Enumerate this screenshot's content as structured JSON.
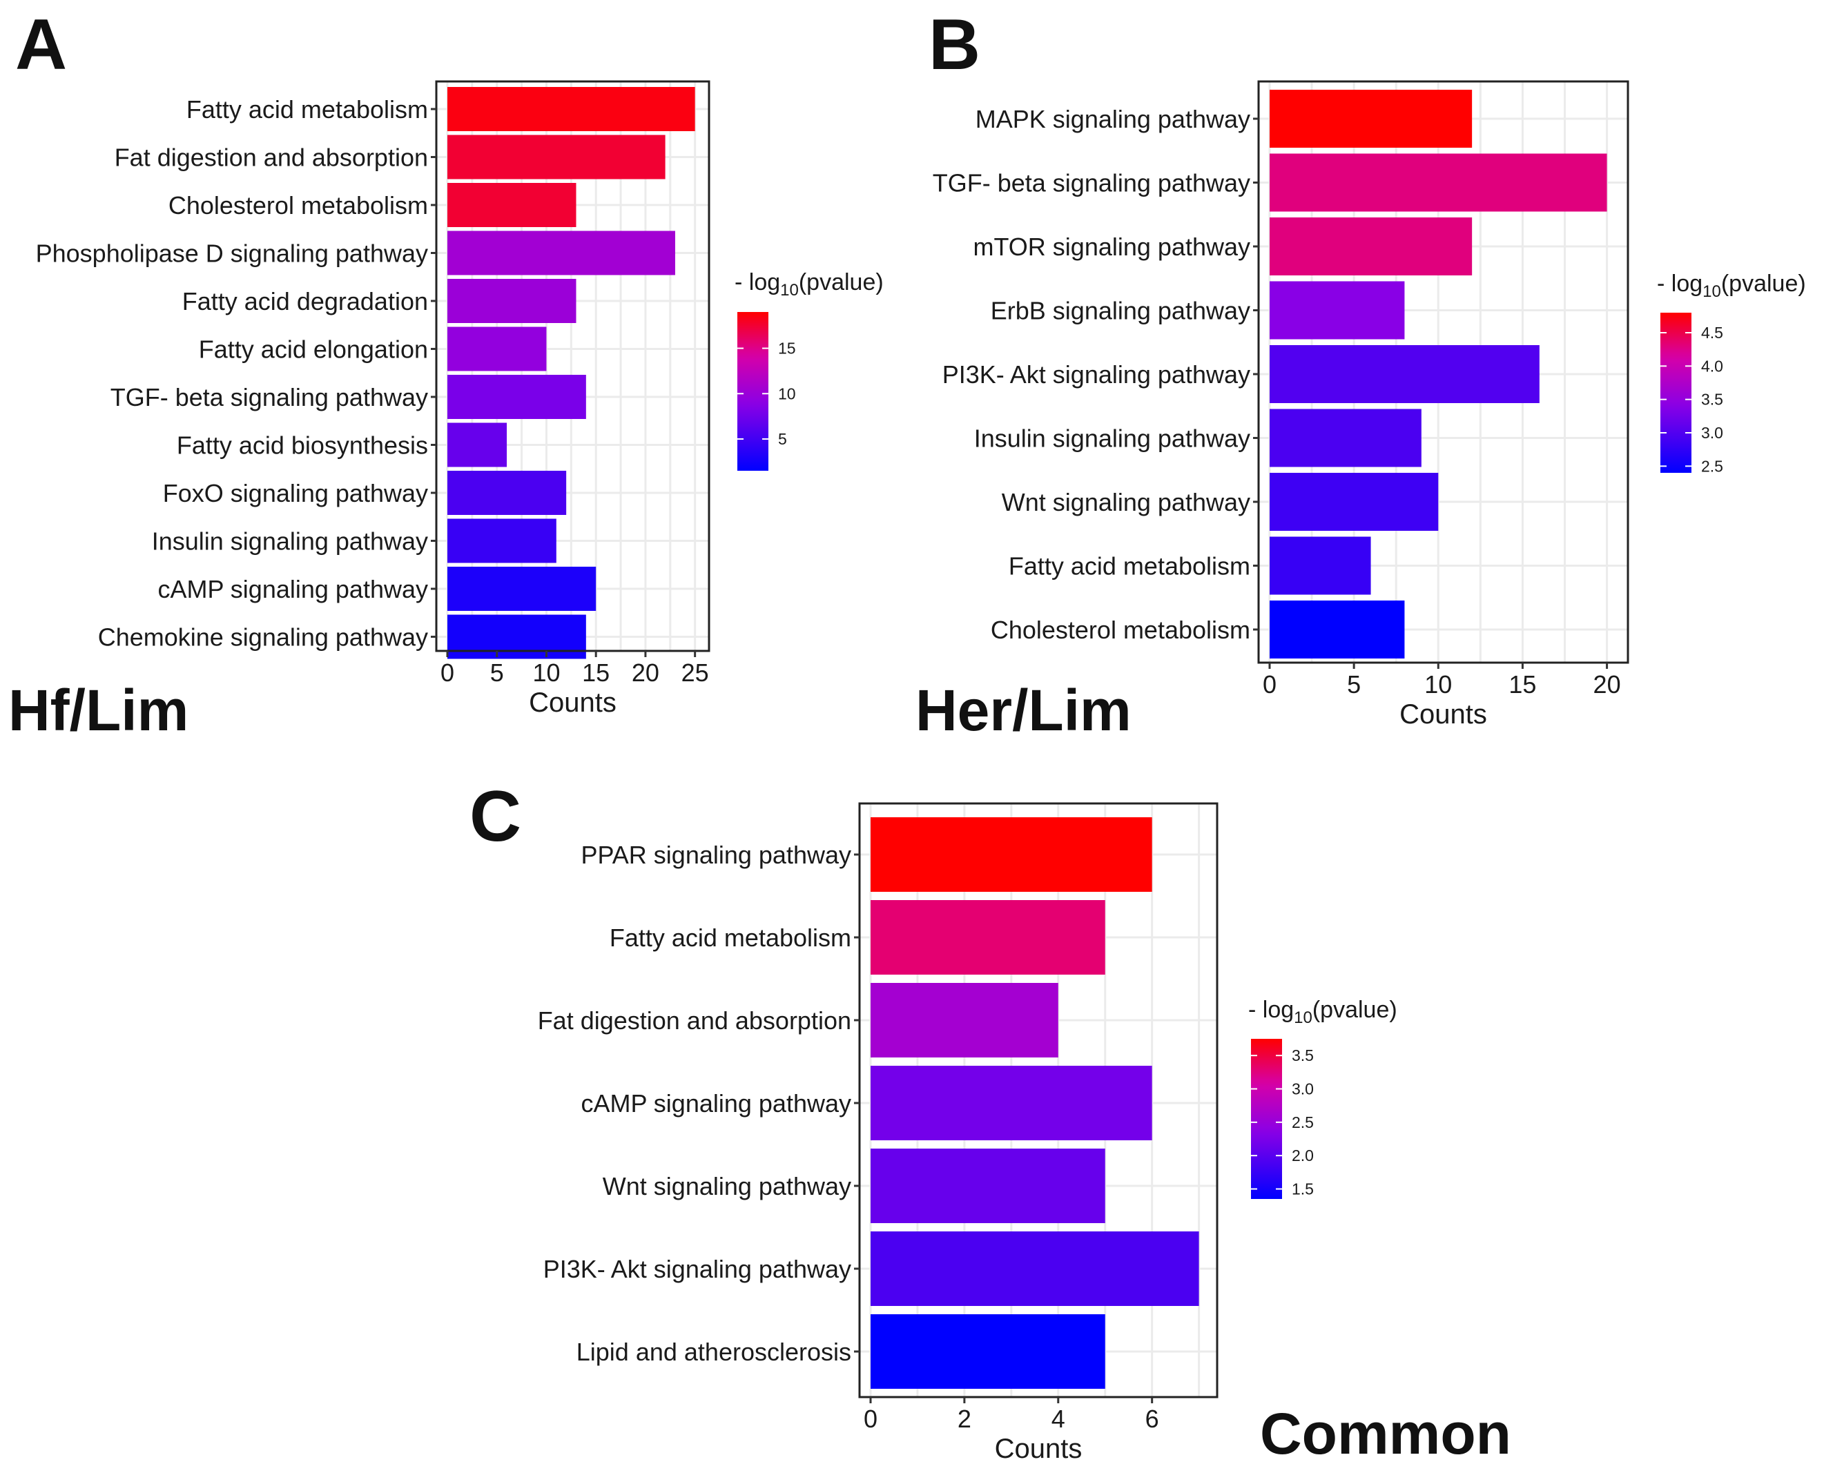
{
  "figure": {
    "panels": [
      {
        "letter": "A",
        "caption": "Hf/Lim"
      },
      {
        "letter": "B",
        "caption": "Her/Lim"
      },
      {
        "letter": "C",
        "caption": "Common"
      }
    ],
    "colors": {
      "low": "#0000ff",
      "mid": "#8a00e6",
      "mid2": "#d600a8",
      "high": "#ff0000"
    }
  },
  "chart_data": [
    {
      "type": "bar",
      "orientation": "horizontal",
      "panel": "A",
      "title": "Hf/Lim",
      "xlabel": "Counts",
      "ylabel": "",
      "xlim": [
        0,
        26
      ],
      "xticks": [
        "0",
        "5",
        "10",
        "15",
        "20",
        "25"
      ],
      "grid": true,
      "categories": [
        "Fatty acid metabolism",
        "Fat digestion and absorption",
        "Cholesterol metabolism",
        "Phospholipase D signaling pathway",
        "Fatty acid degradation",
        "Fatty acid elongation",
        "TGF- beta signaling pathway",
        "Fatty acid biosynthesis",
        "FoxO signaling pathway",
        "Insulin signaling pathway",
        "cAMP signaling pathway",
        "Chemokine signaling pathway"
      ],
      "values": [
        25,
        22,
        13,
        23,
        13,
        10,
        14,
        6,
        12,
        11,
        15,
        14
      ],
      "color_values": [
        18.5,
        17.5,
        17.5,
        10.5,
        10,
        9.5,
        8,
        7,
        5.5,
        4.5,
        3,
        2.5
      ],
      "colorbar": {
        "label_prefix": "- log",
        "label_sub": "10",
        "label_suffix": "(pvalue)",
        "min": 1.5,
        "max": 19,
        "ticks": [
          "5",
          "10",
          "15"
        ]
      },
      "legend_position": "right"
    },
    {
      "type": "bar",
      "orientation": "horizontal",
      "panel": "B",
      "title": "Her/Lim",
      "xlabel": "Counts",
      "ylabel": "",
      "xlim": [
        0,
        21
      ],
      "xticks": [
        "0",
        "5",
        "10",
        "15",
        "20"
      ],
      "grid": true,
      "categories": [
        "MAPK signaling pathway",
        "TGF- beta signaling pathway",
        "mTOR signaling pathway",
        "ErbB signaling pathway",
        "PI3K- Akt signaling pathway",
        "Insulin signaling pathway",
        "Wnt signaling pathway",
        "Fatty acid metabolism",
        "Cholesterol metabolism"
      ],
      "values": [
        12,
        20,
        12,
        8,
        16,
        9,
        10,
        6,
        8
      ],
      "color_values": [
        4.8,
        4.3,
        4.3,
        3.4,
        3.0,
        2.95,
        2.85,
        2.8,
        2.4
      ],
      "colorbar": {
        "label_prefix": "- log",
        "label_sub": "10",
        "label_suffix": "(pvalue)",
        "min": 2.4,
        "max": 4.8,
        "ticks": [
          "2.5",
          "3.0",
          "3.5",
          "4.0",
          "4.5"
        ]
      },
      "legend_position": "right"
    },
    {
      "type": "bar",
      "orientation": "horizontal",
      "panel": "C",
      "title": "Common",
      "xlabel": "Counts",
      "ylabel": "",
      "xlim": [
        0,
        7.3
      ],
      "xticks": [
        "0",
        "2",
        "4",
        "6"
      ],
      "grid": true,
      "categories": [
        "PPAR signaling pathway",
        "Fatty acid metabolism",
        "Fat digestion and absorption",
        "cAMP signaling pathway",
        "Wnt signaling pathway",
        "PI3K- Akt signaling pathway",
        "Lipid and atherosclerosis"
      ],
      "values": [
        6,
        5,
        4,
        6,
        5,
        7,
        5
      ],
      "color_values": [
        3.75,
        3.3,
        2.6,
        2.2,
        2.1,
        1.9,
        1.35
      ],
      "colorbar": {
        "label_prefix": "- log",
        "label_sub": "10",
        "label_suffix": "(pvalue)",
        "min": 1.35,
        "max": 3.75,
        "ticks": [
          "1.5",
          "2.0",
          "2.5",
          "3.0",
          "3.5"
        ]
      },
      "legend_position": "right"
    }
  ]
}
